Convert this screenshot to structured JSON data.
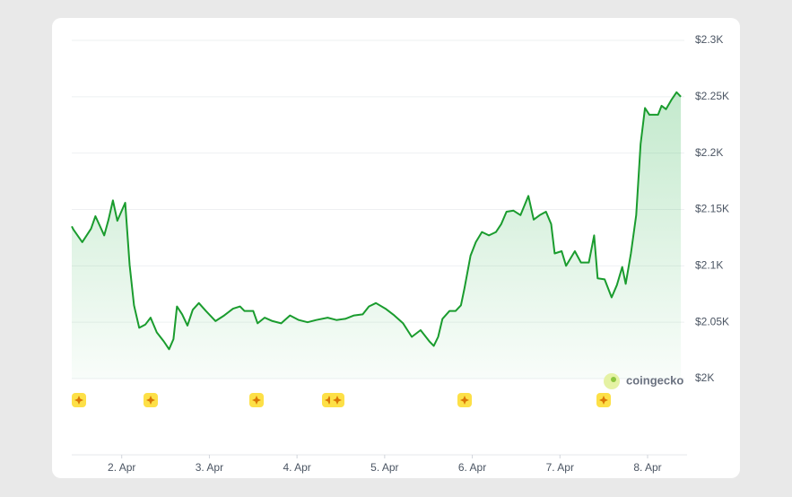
{
  "chart_data": {
    "type": "line",
    "watermark": "coingecko",
    "color": "#1a9c2e",
    "x": [
      1.43,
      1.45,
      1.55,
      1.65,
      1.7,
      1.8,
      1.85,
      1.9,
      1.95,
      2.04,
      2.09,
      2.14,
      2.2,
      2.27,
      2.33,
      2.4,
      2.48,
      2.54,
      2.59,
      2.63,
      2.69,
      2.75,
      2.81,
      2.88,
      2.96,
      3.07,
      3.17,
      3.27,
      3.35,
      3.4,
      3.5,
      3.55,
      3.63,
      3.72,
      3.82,
      3.92,
      4.02,
      4.12,
      4.22,
      4.35,
      4.45,
      4.55,
      4.65,
      4.75,
      4.82,
      4.9,
      5.01,
      5.11,
      5.21,
      5.31,
      5.41,
      5.51,
      5.56,
      5.61,
      5.66,
      5.74,
      5.81,
      5.87,
      5.91,
      5.98,
      6.04,
      6.11,
      6.19,
      6.27,
      6.33,
      6.39,
      6.47,
      6.55,
      6.64,
      6.7,
      6.77,
      6.84,
      6.9,
      6.94,
      7.02,
      7.07,
      7.17,
      7.24,
      7.33,
      7.39,
      7.43,
      7.51,
      7.59,
      7.65,
      7.71,
      7.75,
      7.81,
      7.87,
      7.92,
      7.97,
      8.02,
      8.12,
      8.16,
      8.21,
      8.27,
      8.33,
      8.38
    ],
    "values": [
      2135,
      2132,
      2121,
      2133,
      2144,
      2127,
      2141,
      2158,
      2140,
      2156,
      2101,
      2065,
      2045,
      2048,
      2054,
      2041,
      2033,
      2026,
      2035,
      2064,
      2057,
      2047,
      2061,
      2067,
      2060,
      2051,
      2056,
      2062,
      2064,
      2060,
      2060,
      2049,
      2054,
      2051,
      2049,
      2056,
      2052,
      2050,
      2052,
      2054,
      2052,
      2053,
      2056,
      2057,
      2064,
      2067,
      2062,
      2056,
      2049,
      2037,
      2043,
      2033,
      2029,
      2037,
      2053,
      2060,
      2060,
      2065,
      2080,
      2109,
      2121,
      2130,
      2127,
      2130,
      2137,
      2148,
      2149,
      2145,
      2162,
      2141,
      2145,
      2148,
      2137,
      2111,
      2113,
      2100,
      2113,
      2103,
      2103,
      2127,
      2089,
      2088,
      2072,
      2083,
      2099,
      2084,
      2111,
      2145,
      2208,
      2240,
      2234,
      2234,
      2242,
      2239,
      2247,
      2254,
      2250
    ],
    "xlim": [
      1.43,
      8.44
    ],
    "xticks": [
      {
        "value": 2,
        "label": "2. Apr"
      },
      {
        "value": 3,
        "label": "3. Apr"
      },
      {
        "value": 4,
        "label": "4. Apr"
      },
      {
        "value": 5,
        "label": "5. Apr"
      },
      {
        "value": 6,
        "label": "6. Apr"
      },
      {
        "value": 7,
        "label": "7. Apr"
      },
      {
        "value": 8,
        "label": "8. Apr"
      }
    ],
    "ylim": [
      2000,
      2300
    ],
    "yticks": [
      {
        "value": 2000,
        "label": "$2K"
      },
      {
        "value": 2050,
        "label": "$2.05K"
      },
      {
        "value": 2100,
        "label": "$2.1K"
      },
      {
        "value": 2150,
        "label": "$2.15K"
      },
      {
        "value": 2200,
        "label": "$2.2K"
      },
      {
        "value": 2250,
        "label": "$2.25K"
      },
      {
        "value": 2300,
        "label": "$2.3K"
      }
    ],
    "grid": true
  }
}
